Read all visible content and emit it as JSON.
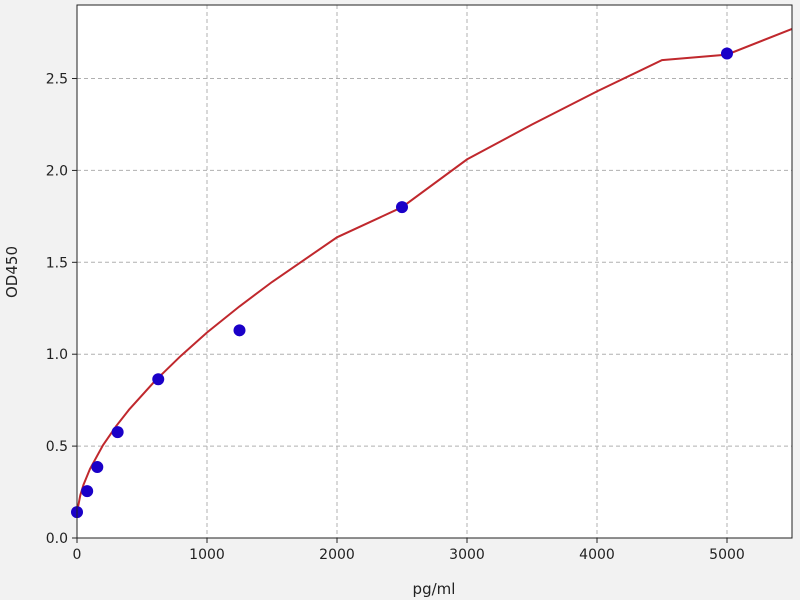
{
  "chart_data": {
    "type": "scatter",
    "title": "",
    "xlabel": "pg/ml",
    "ylabel": "OD450",
    "xlim": [
      0,
      5500
    ],
    "ylim": [
      0,
      2.9
    ],
    "xticks": [
      "0",
      "1000",
      "2000",
      "3000",
      "4000",
      "5000"
    ],
    "yticks": [
      "0.0",
      "0.5",
      "1.0",
      "1.5",
      "2.0",
      "2.5"
    ],
    "grid": true,
    "colors": {
      "points": "#1a00c8",
      "curve": "#c0282d",
      "grid": "#b0b0b0"
    },
    "series": [
      {
        "type": "scatter",
        "x": [
          0,
          78.125,
          156.25,
          312.5,
          625,
          1250,
          2500,
          5000
        ],
        "y": [
          0.141,
          0.255,
          0.386,
          0.576,
          0.864,
          1.13,
          1.8,
          2.636
        ]
      },
      {
        "type": "line",
        "x": [
          0,
          25,
          50,
          100,
          200,
          300,
          400,
          600,
          800,
          1000,
          1250,
          1500,
          2000,
          2500,
          3000,
          3500,
          4000,
          4500,
          5000,
          5500
        ],
        "y": [
          0.14,
          0.233,
          0.29,
          0.376,
          0.505,
          0.608,
          0.698,
          0.855,
          0.992,
          1.118,
          1.26,
          1.393,
          1.636,
          1.8,
          2.06,
          2.25,
          2.43,
          2.6,
          2.63,
          2.77
        ]
      }
    ]
  }
}
